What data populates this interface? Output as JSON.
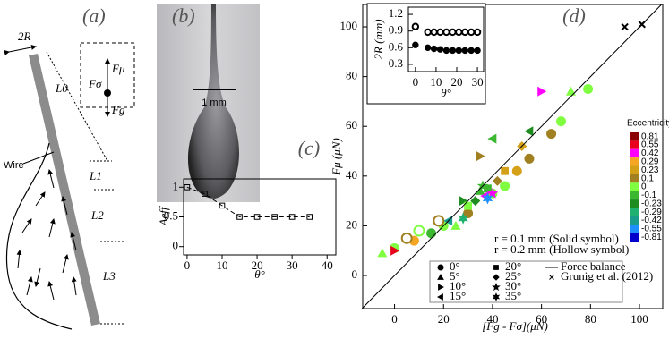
{
  "panel_a": {
    "label": "(a)",
    "radius": "2R",
    "wire": "Wire",
    "l0": "L0",
    "l1": "L1",
    "l2": "L2",
    "l3": "L3",
    "f_mu": "Fμ",
    "f_sigma": "Fσ",
    "f_g": "Fg"
  },
  "panel_b": {
    "label": "(b)",
    "scale": "1 mm"
  },
  "chart_data": [
    {
      "type": "line",
      "title": "(c)",
      "xlabel": "θ°",
      "ylabel": "Aeff",
      "x": [
        0,
        5,
        10,
        15,
        20,
        25,
        30,
        35
      ],
      "values": [
        1.0,
        0.89,
        0.69,
        0.5,
        0.5,
        0.5,
        0.5,
        0.5
      ],
      "color": "#000000",
      "marker": "square",
      "linestyle": "dashed",
      "xlim": [
        -1,
        42.5
      ],
      "ylim": [
        -0.14,
        1.14
      ],
      "xticks": [
        0,
        10,
        20,
        30,
        40
      ],
      "yticks": [
        0,
        0.5,
        1
      ]
    },
    {
      "type": "scatter",
      "title": "(d)",
      "xlabel": "[Fg - Fσ](μN)",
      "ylabel": "Fμ (μN)",
      "xlim": [
        -13,
        109.5
      ],
      "ylim": [
        -13.3,
        109
      ],
      "xticks": [
        0,
        20,
        40,
        60,
        80,
        100
      ],
      "yticks": [
        0,
        20,
        40,
        60,
        80,
        100
      ],
      "annotations": [
        "r = 0.1 mm (Solid symbol)",
        "r = 0.2 mm (Hollow symbol)"
      ],
      "series": [
        {
          "name": "0°",
          "marker": "circle",
          "x": [
            79,
            68,
            64,
            55,
            50,
            45,
            40,
            30,
            20,
            15,
            8,
            0,
            5,
            10,
            18
          ],
          "values": [
            75,
            62,
            57,
            47,
            42,
            36,
            33,
            25,
            20,
            17,
            14,
            11,
            15,
            18,
            22
          ],
          "colors": [
            "#7fff3f",
            "#7fff3f",
            "#a08020",
            "#a08020",
            "#d4a017",
            "#7fff3f",
            "#7fff3f",
            "#a08020",
            "#7fff3f",
            "#3cb830",
            "#f5a623",
            "#7fff3f",
            "#a08020",
            "#7fff3f",
            "#a08020"
          ],
          "hollow": [
            false,
            false,
            false,
            false,
            false,
            false,
            false,
            false,
            false,
            false,
            false,
            false,
            true,
            true,
            true
          ]
        },
        {
          "name": "5°",
          "marker": "tri-up",
          "x": [
            -5,
            72,
            35,
            25
          ],
          "values": [
            9,
            74,
            34,
            20
          ],
          "colors": [
            "#7fff3f",
            "#7fff3f",
            "#3cb830",
            "#7fff3f"
          ]
        },
        {
          "name": "10°",
          "marker": "tri-right",
          "x": [
            60,
            35,
            0,
            28
          ],
          "values": [
            74,
            48,
            10,
            30
          ],
          "colors": [
            "#ff00ff",
            "#a08020",
            "#e8001e",
            "#1e8c1e"
          ]
        },
        {
          "name": "15°",
          "marker": "tri-left",
          "x": [
            55,
            40,
            37,
            22
          ],
          "values": [
            58,
            55,
            32,
            22
          ],
          "colors": [
            "#1e8c1e",
            "#3cb830",
            "#ff00ff",
            "#1a9c8c"
          ]
        },
        {
          "name": "20°",
          "marker": "square",
          "x": [
            45,
            38,
            30
          ],
          "values": [
            42,
            35,
            28
          ],
          "colors": [
            "#d4a017",
            "#3cb830",
            "#7fff3f"
          ]
        },
        {
          "name": "25°",
          "marker": "diamond",
          "x": [
            52,
            42,
            33
          ],
          "values": [
            52,
            38,
            30
          ],
          "colors": [
            "#d4a017",
            "#a08020",
            "#1e8c1e"
          ]
        },
        {
          "name": "30°",
          "marker": "star",
          "x": [
            40,
            36
          ],
          "values": [
            33,
            36
          ],
          "colors": [
            "#ff00ff",
            "#3cb830"
          ]
        },
        {
          "name": "35°",
          "marker": "hexagram",
          "x": [
            38,
            28
          ],
          "values": [
            31,
            23
          ],
          "colors": [
            "#1e90ff",
            "#20b070"
          ]
        },
        {
          "name": "Force balance",
          "type": "line",
          "x": [
            -13.3,
            109
          ],
          "values": [
            -13.3,
            109
          ],
          "color": "#000000"
        },
        {
          "name": "Grunig et al. (2012)",
          "marker": "x",
          "x": [
            94,
            101
          ],
          "values": [
            100,
            101
          ],
          "colors": [
            "#000000",
            "#000000"
          ]
        }
      ],
      "colorbar": {
        "title": "Eccentricity",
        "ticks": [
          0.81,
          0.55,
          0.42,
          0.29,
          0.23,
          0.1,
          0,
          -0.1,
          -0.23,
          -0.29,
          -0.42,
          -0.55,
          -0.81
        ],
        "colors": [
          "#8b0000",
          "#e8001e",
          "#ff00ff",
          "#f5a623",
          "#d4a017",
          "#a08020",
          "#7fff3f",
          "#3cb830",
          "#1e8c1e",
          "#20b070",
          "#1a9c8c",
          "#1e90ff",
          "#0000cd"
        ]
      }
    },
    {
      "type": "scatter",
      "xlabel": "θ°",
      "ylabel": "2R (mm)",
      "xlim": [
        -3.4,
        33
      ],
      "ylim": [
        0.17,
        1.33
      ],
      "xticks": [
        0,
        10,
        20,
        30
      ],
      "yticks": [
        0.3,
        0.6,
        0.9,
        1.2
      ],
      "series": [
        {
          "marker": "circle",
          "x": [
            0,
            6,
            9,
            12,
            15,
            18,
            21,
            24,
            27,
            30
          ],
          "values": [
            0.98,
            0.88,
            0.88,
            0.88,
            0.88,
            0.88,
            0.88,
            0.88,
            0.88,
            0.88
          ],
          "colors": [
            "#000000",
            "#000000",
            "#000000",
            "#000000",
            "#000000",
            "#000000",
            "#000000",
            "#000000",
            "#000000",
            "#000000"
          ],
          "hollow": [
            true,
            true,
            true,
            true,
            true,
            true,
            true,
            true,
            true,
            true
          ]
        },
        {
          "marker": "circle",
          "x": [
            0,
            6,
            9,
            12,
            15,
            18,
            21,
            24,
            27,
            30
          ],
          "values": [
            0.65,
            0.6,
            0.58,
            0.57,
            0.55,
            0.55,
            0.55,
            0.55,
            0.55,
            0.55
          ],
          "colors": [
            "#000000",
            "#000000",
            "#000000",
            "#000000",
            "#000000",
            "#000000",
            "#000000",
            "#000000",
            "#000000",
            "#000000"
          ]
        }
      ]
    }
  ]
}
